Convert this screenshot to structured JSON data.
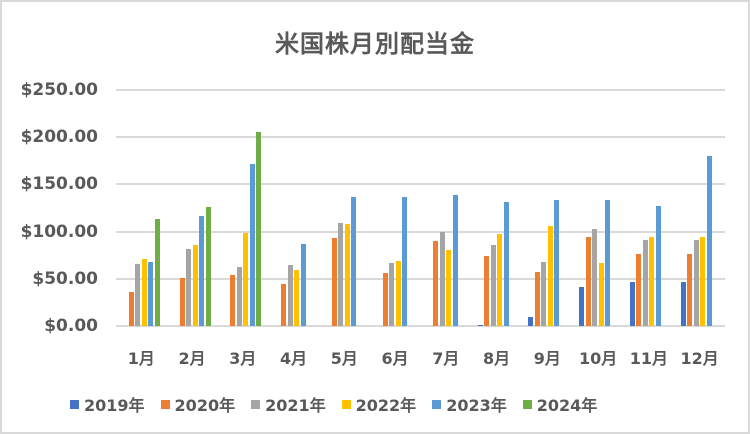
{
  "chart_data": {
    "type": "bar",
    "title": "米国株月別配当金",
    "xlabel": "",
    "ylabel": "",
    "ylim": [
      0,
      250
    ],
    "yticks": [
      "$0.00",
      "$50.00",
      "$100.00",
      "$150.00",
      "$200.00",
      "$250.00"
    ],
    "grid": true,
    "legend_position": "bottom",
    "categories": [
      "1月",
      "2月",
      "3月",
      "4月",
      "5月",
      "6月",
      "7月",
      "8月",
      "9月",
      "10月",
      "11月",
      "12月"
    ],
    "series": [
      {
        "name": "2019年",
        "color": "#4472C4",
        "values": [
          0,
          0,
          0,
          0,
          0,
          0,
          0,
          1,
          10,
          41,
          47,
          47
        ]
      },
      {
        "name": "2020年",
        "color": "#ED7D31",
        "values": [
          36,
          51,
          54,
          44,
          93,
          56,
          90,
          74,
          57,
          94,
          76,
          76
        ]
      },
      {
        "name": "2021年",
        "color": "#A5A5A5",
        "values": [
          66,
          82,
          62,
          65,
          109,
          67,
          100,
          86,
          68,
          103,
          91,
          91
        ]
      },
      {
        "name": "2022年",
        "color": "#FFC000",
        "values": [
          71,
          86,
          98,
          59,
          108,
          69,
          80,
          97,
          106,
          67,
          94,
          94
        ]
      },
      {
        "name": "2023年",
        "color": "#5B9BD5",
        "values": [
          68,
          116,
          172,
          87,
          137,
          137,
          139,
          131,
          134,
          134,
          127,
          180
        ]
      },
      {
        "name": "2024年",
        "color": "#70AD47",
        "values": [
          113,
          126,
          205,
          0,
          0,
          0,
          0,
          0,
          0,
          0,
          0,
          0
        ]
      }
    ]
  }
}
